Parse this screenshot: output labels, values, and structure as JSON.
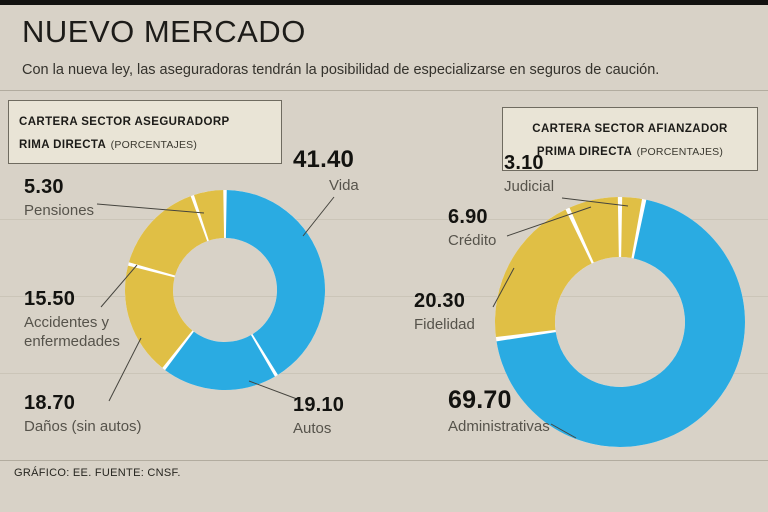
{
  "page": {
    "title": "NUEVO MERCADO",
    "subtitle": "Con la nueva ley, las aseguradoras tendrán la posibilidad de especializarse en seguros de caución.",
    "footer": "GRÁFICO: EE. FUENTE: CNSF."
  },
  "colors": {
    "blue": "#2aabe2",
    "yellow": "#e0bf45",
    "background": "#d8d2c7",
    "separator": "#ffffff"
  },
  "chart_data": [
    {
      "type": "pie",
      "subtype": "donut",
      "header": {
        "line1": "CARTERA SECTOR ASEGURADORP",
        "line2": "RIMA DIRECTA",
        "suffix": "(PORCENTAJES)"
      },
      "units": "percent",
      "start_angle": 0,
      "direction": "clockwise",
      "legend_position": "callout-labels",
      "series": [
        {
          "label": "Vida",
          "value": 41.4,
          "display": "41.40",
          "color": "blue"
        },
        {
          "label": "Autos",
          "value": 19.1,
          "display": "19.10",
          "color": "blue"
        },
        {
          "label": "Daños (sin autos)",
          "value": 18.7,
          "display": "18.70",
          "color": "yellow"
        },
        {
          "label": "Accidentes y enfermedades",
          "value": 15.5,
          "display": "15.50",
          "color": "yellow"
        },
        {
          "label": "Pensiones",
          "value": 5.3,
          "display": "5.30",
          "color": "yellow"
        }
      ]
    },
    {
      "type": "pie",
      "subtype": "donut",
      "header": {
        "line1": "CARTERA SECTOR AFIANZADOR",
        "line2": "PRIMA DIRECTA",
        "suffix": "(PORCENTAJES)"
      },
      "units": "percent",
      "start_angle": 0,
      "direction": "clockwise",
      "legend_position": "callout-labels",
      "series": [
        {
          "label": "Judicial",
          "value": 3.1,
          "display": "3.10",
          "color": "yellow"
        },
        {
          "label": "Administrativas",
          "value": 69.7,
          "display": "69.70",
          "color": "blue"
        },
        {
          "label": "Fidelidad",
          "value": 20.3,
          "display": "20.30",
          "color": "yellow"
        },
        {
          "label": "Crédito",
          "value": 6.9,
          "display": "6.90",
          "color": "yellow"
        }
      ]
    }
  ]
}
